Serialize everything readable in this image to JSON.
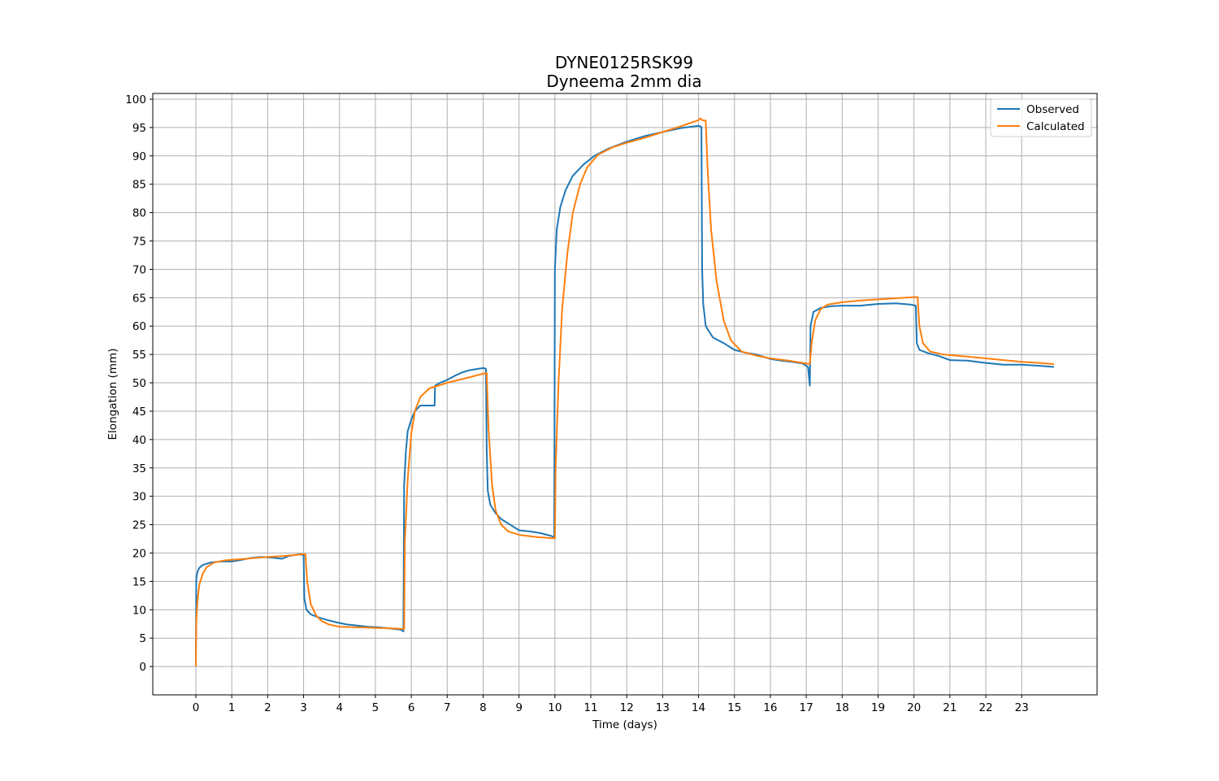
{
  "chart_data": {
    "type": "line",
    "title": "DYNE0125RSK99",
    "subtitle": "Dyneema 2mm dia",
    "xlabel": "Time (days)",
    "ylabel": "Elongation (mm)",
    "xlim": [
      -1.2,
      25.1
    ],
    "ylim": [
      -5,
      101
    ],
    "xticks": [
      0,
      1,
      2,
      3,
      4,
      5,
      6,
      7,
      8,
      9,
      10,
      11,
      12,
      13,
      14,
      15,
      16,
      17,
      18,
      19,
      20,
      21,
      22,
      23
    ],
    "yticks": [
      0,
      5,
      10,
      15,
      20,
      25,
      30,
      35,
      40,
      45,
      50,
      55,
      60,
      65,
      70,
      75,
      80,
      85,
      90,
      95,
      100
    ],
    "grid": true,
    "legend_position": "top-right",
    "series": [
      {
        "name": "Observed",
        "color": "#1f77b4",
        "points": [
          [
            0.0,
            0.0
          ],
          [
            0.01,
            15.5
          ],
          [
            0.05,
            16.8
          ],
          [
            0.1,
            17.4
          ],
          [
            0.2,
            17.9
          ],
          [
            0.4,
            18.3
          ],
          [
            0.7,
            18.5
          ],
          [
            1.0,
            18.5
          ],
          [
            1.2,
            18.7
          ],
          [
            1.5,
            19.1
          ],
          [
            1.8,
            19.3
          ],
          [
            2.1,
            19.2
          ],
          [
            2.4,
            19.0
          ],
          [
            2.6,
            19.5
          ],
          [
            2.9,
            19.8
          ],
          [
            3.0,
            19.6
          ],
          [
            3.02,
            12.0
          ],
          [
            3.08,
            10.0
          ],
          [
            3.2,
            9.2
          ],
          [
            3.4,
            8.7
          ],
          [
            3.6,
            8.3
          ],
          [
            3.9,
            7.8
          ],
          [
            4.2,
            7.4
          ],
          [
            4.5,
            7.2
          ],
          [
            4.8,
            7.0
          ],
          [
            5.1,
            6.9
          ],
          [
            5.4,
            6.7
          ],
          [
            5.7,
            6.5
          ],
          [
            5.78,
            6.2
          ],
          [
            5.8,
            32.0
          ],
          [
            5.85,
            38.0
          ],
          [
            5.9,
            41.5
          ],
          [
            6.0,
            43.5
          ],
          [
            6.1,
            45.0
          ],
          [
            6.25,
            46.0
          ],
          [
            6.4,
            46.0
          ],
          [
            6.65,
            46.0
          ],
          [
            6.66,
            49.5
          ],
          [
            6.8,
            50.0
          ],
          [
            7.0,
            50.5
          ],
          [
            7.2,
            51.2
          ],
          [
            7.4,
            51.8
          ],
          [
            7.6,
            52.2
          ],
          [
            7.8,
            52.4
          ],
          [
            8.0,
            52.6
          ],
          [
            8.08,
            52.5
          ],
          [
            8.1,
            38.0
          ],
          [
            8.13,
            31.0
          ],
          [
            8.2,
            28.5
          ],
          [
            8.35,
            27.0
          ],
          [
            8.5,
            26.0
          ],
          [
            8.7,
            25.2
          ],
          [
            9.0,
            24.0
          ],
          [
            9.3,
            23.8
          ],
          [
            9.6,
            23.5
          ],
          [
            9.9,
            23.0
          ],
          [
            9.98,
            22.8
          ],
          [
            10.0,
            70.0
          ],
          [
            10.05,
            77.0
          ],
          [
            10.15,
            81.0
          ],
          [
            10.3,
            84.0
          ],
          [
            10.5,
            86.5
          ],
          [
            10.8,
            88.5
          ],
          [
            11.1,
            90.0
          ],
          [
            11.5,
            91.3
          ],
          [
            12.0,
            92.5
          ],
          [
            12.5,
            93.5
          ],
          [
            13.0,
            94.2
          ],
          [
            13.5,
            94.9
          ],
          [
            14.0,
            95.3
          ],
          [
            14.08,
            95.1
          ],
          [
            14.1,
            70.0
          ],
          [
            14.13,
            64.0
          ],
          [
            14.2,
            60.0
          ],
          [
            14.4,
            58.0
          ],
          [
            14.7,
            57.0
          ],
          [
            15.0,
            55.8
          ],
          [
            15.3,
            55.3
          ],
          [
            15.6,
            55.0
          ],
          [
            16.0,
            54.2
          ],
          [
            16.3,
            53.9
          ],
          [
            16.6,
            53.7
          ],
          [
            16.9,
            53.4
          ],
          [
            17.05,
            52.8
          ],
          [
            17.1,
            49.5
          ],
          [
            17.12,
            60.0
          ],
          [
            17.2,
            62.5
          ],
          [
            17.4,
            63.2
          ],
          [
            17.7,
            63.5
          ],
          [
            18.0,
            63.6
          ],
          [
            18.5,
            63.6
          ],
          [
            19.0,
            63.9
          ],
          [
            19.5,
            64.0
          ],
          [
            19.9,
            63.8
          ],
          [
            20.05,
            63.6
          ],
          [
            20.08,
            57.0
          ],
          [
            20.15,
            55.8
          ],
          [
            20.4,
            55.2
          ],
          [
            20.7,
            54.7
          ],
          [
            21.0,
            54.0
          ],
          [
            21.5,
            53.9
          ],
          [
            22.0,
            53.5
          ],
          [
            22.5,
            53.2
          ],
          [
            23.0,
            53.2
          ],
          [
            23.5,
            53.0
          ],
          [
            23.9,
            52.8
          ]
        ]
      },
      {
        "name": "Calculated",
        "color": "#ff7f0e",
        "points": [
          [
            0.0,
            0.0
          ],
          [
            0.01,
            8.0
          ],
          [
            0.05,
            12.0
          ],
          [
            0.1,
            14.5
          ],
          [
            0.2,
            16.5
          ],
          [
            0.3,
            17.5
          ],
          [
            0.5,
            18.3
          ],
          [
            0.8,
            18.7
          ],
          [
            1.2,
            18.9
          ],
          [
            1.6,
            19.1
          ],
          [
            2.0,
            19.3
          ],
          [
            2.5,
            19.5
          ],
          [
            3.0,
            19.8
          ],
          [
            3.05,
            19.8
          ],
          [
            3.1,
            15.0
          ],
          [
            3.2,
            11.0
          ],
          [
            3.35,
            9.0
          ],
          [
            3.5,
            8.0
          ],
          [
            3.7,
            7.4
          ],
          [
            4.0,
            7.0
          ],
          [
            4.5,
            6.9
          ],
          [
            5.0,
            6.8
          ],
          [
            5.5,
            6.7
          ],
          [
            5.8,
            6.6
          ],
          [
            5.82,
            22.0
          ],
          [
            5.9,
            33.0
          ],
          [
            6.0,
            41.0
          ],
          [
            6.1,
            45.0
          ],
          [
            6.25,
            47.5
          ],
          [
            6.5,
            49.0
          ],
          [
            7.0,
            50.0
          ],
          [
            7.5,
            50.8
          ],
          [
            8.0,
            51.6
          ],
          [
            8.1,
            51.7
          ],
          [
            8.15,
            42.0
          ],
          [
            8.25,
            32.0
          ],
          [
            8.35,
            27.5
          ],
          [
            8.5,
            25.0
          ],
          [
            8.7,
            23.8
          ],
          [
            9.0,
            23.2
          ],
          [
            9.5,
            22.8
          ],
          [
            9.9,
            22.6
          ],
          [
            10.0,
            22.6
          ],
          [
            10.02,
            35.0
          ],
          [
            10.1,
            50.0
          ],
          [
            10.2,
            63.0
          ],
          [
            10.35,
            73.0
          ],
          [
            10.5,
            80.0
          ],
          [
            10.7,
            85.0
          ],
          [
            10.9,
            88.0
          ],
          [
            11.2,
            90.2
          ],
          [
            11.6,
            91.5
          ],
          [
            12.0,
            92.3
          ],
          [
            12.5,
            93.2
          ],
          [
            13.0,
            94.2
          ],
          [
            13.5,
            95.2
          ],
          [
            14.0,
            96.3
          ],
          [
            14.05,
            96.6
          ],
          [
            14.1,
            96.3
          ],
          [
            14.2,
            96.2
          ],
          [
            14.25,
            88.0
          ],
          [
            14.35,
            77.0
          ],
          [
            14.5,
            68.0
          ],
          [
            14.7,
            61.0
          ],
          [
            14.9,
            57.5
          ],
          [
            15.2,
            55.5
          ],
          [
            15.6,
            54.8
          ],
          [
            16.0,
            54.3
          ],
          [
            16.5,
            53.9
          ],
          [
            17.0,
            53.4
          ],
          [
            17.1,
            53.3
          ],
          [
            17.15,
            57.0
          ],
          [
            17.25,
            61.0
          ],
          [
            17.4,
            63.0
          ],
          [
            17.6,
            63.8
          ],
          [
            18.0,
            64.2
          ],
          [
            18.5,
            64.5
          ],
          [
            19.0,
            64.7
          ],
          [
            19.5,
            64.9
          ],
          [
            20.0,
            65.1
          ],
          [
            20.1,
            65.1
          ],
          [
            20.15,
            60.0
          ],
          [
            20.25,
            57.0
          ],
          [
            20.45,
            55.5
          ],
          [
            20.8,
            55.0
          ],
          [
            21.5,
            54.6
          ],
          [
            22.0,
            54.3
          ],
          [
            22.5,
            54.0
          ],
          [
            23.0,
            53.7
          ],
          [
            23.5,
            53.5
          ],
          [
            23.9,
            53.3
          ]
        ]
      }
    ]
  }
}
